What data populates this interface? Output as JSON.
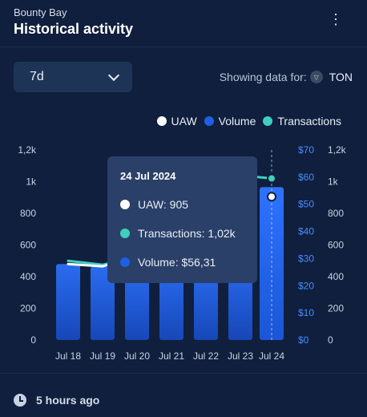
{
  "header": {
    "subtitle": "Bounty Bay",
    "title": "Historical activity",
    "menu_icon": "kebab-icon"
  },
  "controls": {
    "period": "7d",
    "showing_label": "Showing data for:",
    "network": "TON",
    "network_icon": "ton-icon"
  },
  "colors": {
    "uaw": "#ffffff",
    "volume": "#1f5fe6",
    "transactions": "#3ecfbf",
    "background": "#0f1f3d"
  },
  "tooltip": {
    "date": "24 Jul 2024",
    "uaw": "UAW: 905",
    "transactions": "Transactions: 1,02k",
    "volume": "Volume: $56,31"
  },
  "footer": {
    "updated": "5 hours ago",
    "icon": "clock-icon"
  },
  "chart_data": {
    "type": "bar",
    "categories": [
      "Jul 18",
      "Jul 19",
      "Jul 20",
      "Jul 21",
      "Jul 22",
      "Jul 23",
      "Jul 24"
    ],
    "series": [
      {
        "name": "Volume",
        "type": "bar",
        "axis": "volume",
        "values": [
          28,
          27,
          26,
          27,
          27,
          30,
          56.31
        ]
      },
      {
        "name": "UAW",
        "type": "line",
        "axis": "uaw",
        "values": [
          480,
          465,
          530,
          null,
          null,
          null,
          905
        ]
      },
      {
        "name": "Transactions",
        "type": "line",
        "axis": "transactions",
        "values": [
          500,
          475,
          525,
          null,
          null,
          1040,
          1020
        ]
      }
    ],
    "axes": {
      "uaw": {
        "position": "left",
        "ticks": [
          "0",
          "200",
          "400",
          "600",
          "800",
          "1k",
          "1,2k"
        ],
        "range": [
          0,
          1200
        ]
      },
      "volume": {
        "position": "right",
        "ticks": [
          "$0",
          "$10",
          "$20",
          "$30",
          "$40",
          "$50",
          "$60",
          "$70"
        ],
        "range": [
          0,
          70
        ]
      },
      "transactions": {
        "position": "right",
        "ticks": [
          "0",
          "200",
          "400",
          "600",
          "800",
          "1k",
          "1,2k"
        ],
        "range": [
          0,
          1200
        ]
      }
    },
    "legend": [
      "UAW",
      "Volume",
      "Transactions"
    ],
    "legend_position": "top-right",
    "grid": false,
    "highlighted_category": "Jul 24"
  }
}
